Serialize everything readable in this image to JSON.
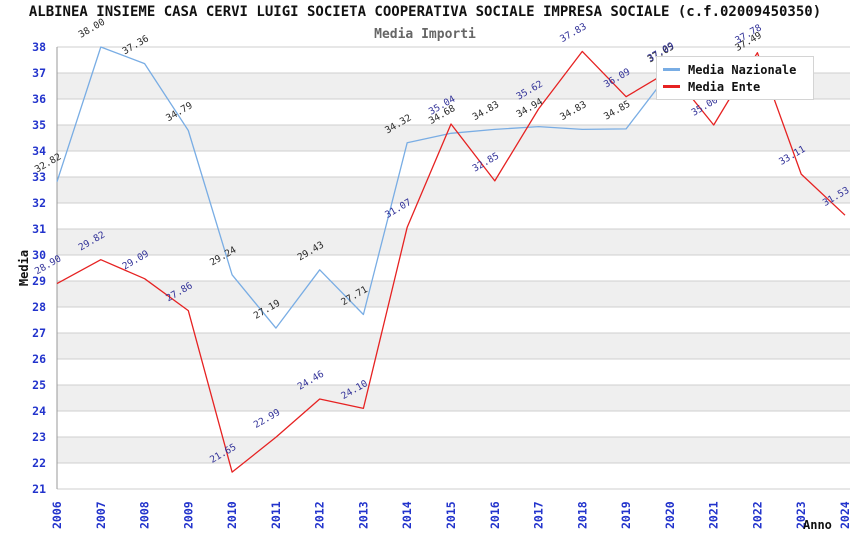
{
  "title": "ALBINEA INSIEME CASA CERVI LUIGI SOCIETA COOPERATIVA SOCIALE IMPRESA SOCIALE (c.f.02009450350)",
  "subtitle": "Media Importi",
  "axes": {
    "y_label": "Media",
    "x_label": "Anno",
    "y_ticks": [
      21,
      22,
      23,
      24,
      25,
      26,
      27,
      28,
      29,
      30,
      31,
      32,
      33,
      34,
      35,
      36,
      37,
      38
    ]
  },
  "legend": {
    "items": [
      {
        "label": "Media Nazionale",
        "color": "#79ade4"
      },
      {
        "label": "Media Ente",
        "color": "#e62222"
      }
    ]
  },
  "colors": {
    "band": "#efefef",
    "grid": "#cfcfcf",
    "axis_line": "#999999",
    "tick_text": "#2233cc",
    "nazionale_line": "#79ade4",
    "nazionale_label": "#2a2a2a",
    "ente_line": "#e62222",
    "ente_label": "#333399"
  },
  "chart_data": {
    "type": "line",
    "x": [
      2006,
      2007,
      2008,
      2009,
      2010,
      2011,
      2012,
      2013,
      2014,
      2015,
      2016,
      2017,
      2018,
      2019,
      2020,
      2021,
      2022,
      2023,
      2024
    ],
    "series": [
      {
        "name": "Media Nazionale",
        "color": "#79ade4",
        "label_color": "#2a2a2a",
        "values": [
          32.82,
          38.0,
          37.36,
          34.79,
          29.24,
          27.19,
          29.43,
          27.71,
          34.32,
          34.68,
          34.83,
          34.94,
          34.83,
          34.85,
          37.05,
          null,
          37.49,
          null,
          null
        ]
      },
      {
        "name": "Media Ente",
        "color": "#e62222",
        "label_color": "#333399",
        "values": [
          28.9,
          29.82,
          29.09,
          27.86,
          21.65,
          22.99,
          24.46,
          24.1,
          31.07,
          35.04,
          32.85,
          35.62,
          37.83,
          36.09,
          37.09,
          35.0,
          37.78,
          33.11,
          31.53
        ]
      }
    ],
    "title": "Media Importi",
    "xlabel": "Anno",
    "ylabel": "Media",
    "ylim": [
      21,
      38
    ],
    "grid": "horizontal-bands",
    "legend_position": "top-right-inside"
  }
}
